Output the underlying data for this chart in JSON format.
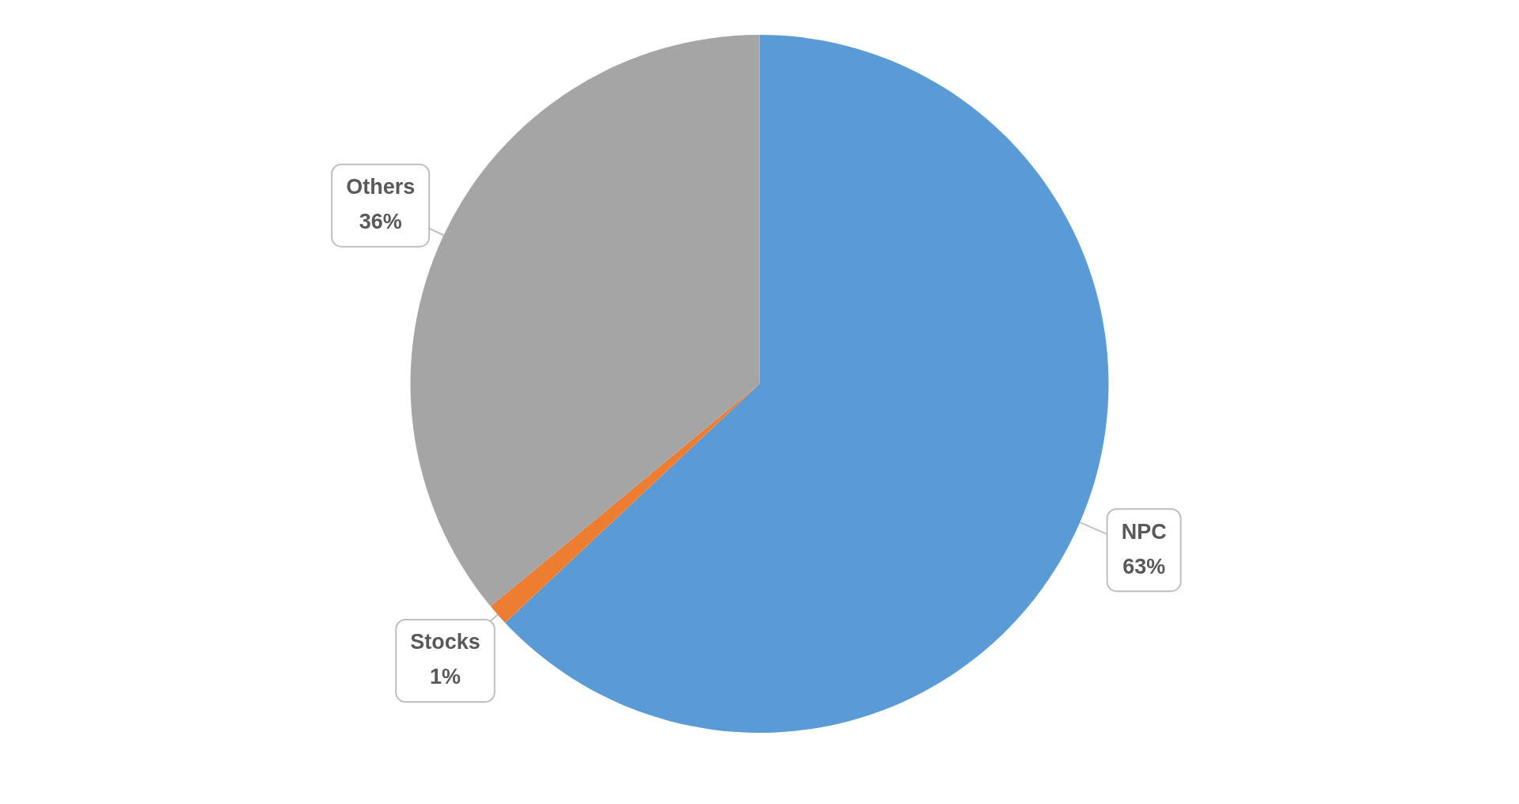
{
  "chart_data": {
    "type": "pie",
    "categories": [
      "NPC",
      "Stocks",
      "Others"
    ],
    "values": [
      63,
      1,
      36
    ],
    "colors": [
      "#5b9bd5",
      "#ed7d31",
      "#a5a5a5"
    ],
    "value_labels": [
      "63%",
      "1%",
      "36%"
    ],
    "legend": false
  }
}
